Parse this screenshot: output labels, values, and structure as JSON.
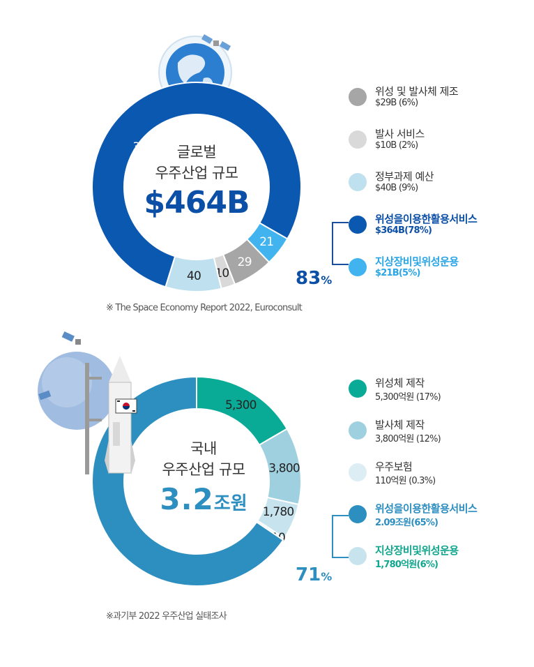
{
  "global": {
    "center_line1": "글로벌",
    "center_line2": "우주산업 규모",
    "center_total": "$464B",
    "percent_value": "83",
    "percent_sign": "%",
    "source": "※ The Space Economy Report 2022, Euroconsult",
    "legend": [
      {
        "name": "위성 및 발사체 제조",
        "value": "$29B (6%)",
        "color": "#a6a6a6",
        "highlight": false
      },
      {
        "name": "발사 서비스",
        "value": "$10B (2%)",
        "color": "#d9d9d9",
        "highlight": false
      },
      {
        "name": "정부과제 예산",
        "value": "$40B (9%)",
        "color": "#bfe0ee",
        "highlight": false
      },
      {
        "name": "위성을이용한활용서비스",
        "value": "$364B(78%)",
        "color": "#0b58b0",
        "highlight": true,
        "text_color": "#0b4fa6"
      },
      {
        "name": "지상장비및위성운용",
        "value": "$21B(5%)",
        "color": "#41b3ee",
        "highlight": true,
        "text_color": "#2aa6e6"
      }
    ]
  },
  "domestic": {
    "center_line1": "국내",
    "center_line2": "우주산업 규모",
    "center_total_num": "3.2",
    "center_total_unit": "조원",
    "percent_value": "71",
    "percent_sign": "%",
    "source": "※과기부 2022 우주산업 실태조사",
    "legend": [
      {
        "name": "위성체 제작",
        "value": "5,300억원 (17%)",
        "color": "#0aab96",
        "highlight": false
      },
      {
        "name": "발사체 제작",
        "value": "3,800억원 (12%)",
        "color": "#9fd0e0",
        "highlight": false
      },
      {
        "name": "우주보험",
        "value": "110억원 (0.3%)",
        "color": "#dcedf3",
        "highlight": false
      },
      {
        "name": "위성을이용한활용서비스",
        "value": "2.09조원(65%)",
        "color": "#2d8ec0",
        "highlight": true,
        "text_color": "#2d8ec0"
      },
      {
        "name": "지상장비및위성운용",
        "value": "1,780억원(6%)",
        "color": "#c7e4ee",
        "highlight": true,
        "text_color": "#11a68e"
      }
    ]
  },
  "chart_data": [
    {
      "type": "pie",
      "title": "글로벌 우주산업 규모",
      "categories": [
        "위성 및 발사체 제조",
        "발사 서비스",
        "정부과제 예산",
        "위성을이용한활용서비스",
        "지상장비및위성운용"
      ],
      "values": [
        29,
        10,
        40,
        364,
        21
      ],
      "data_labels": [
        "29",
        "10",
        "40",
        "364",
        "21"
      ],
      "colors": [
        "#a6a6a6",
        "#d9d9d9",
        "#bfe0ee",
        "#0b58b0",
        "#41b3ee"
      ],
      "start_angle_deg": 136,
      "unit": "$B",
      "legend_position": "right"
    },
    {
      "type": "pie",
      "title": "국내 우주산업 규모",
      "categories": [
        "위성체 제작",
        "발사체 제작",
        "지상장비및위성운용",
        "우주보험",
        "위성을이용한활용서비스"
      ],
      "values": [
        5300,
        3800,
        1780,
        110,
        20900
      ],
      "data_labels": [
        "5,300",
        "3,800",
        "1,780",
        "110",
        "20,900"
      ],
      "colors": [
        "#0aab96",
        "#9fd0e0",
        "#c7e4ee",
        "#dcedf3",
        "#2d8ec0"
      ],
      "start_angle_deg": 0,
      "unit": "억원",
      "legend_position": "right"
    }
  ]
}
